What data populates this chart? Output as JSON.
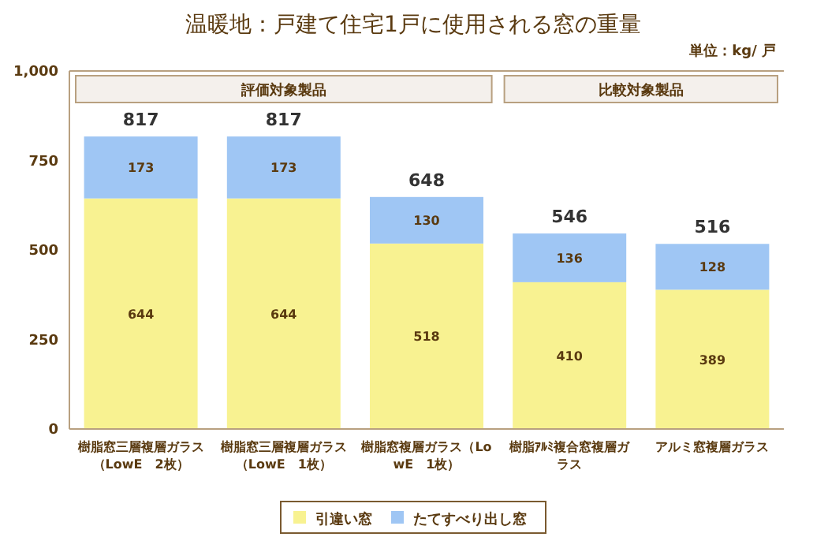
{
  "chart_data": {
    "type": "bar",
    "title": "温暖地：戸建て住宅1戸に使用される窓の重量",
    "stacked": true,
    "categories": [
      "樹脂窓三層複層ガラス（LowE　2枚）",
      "樹脂窓三層複層ガラス（LowE　1枚）",
      "樹脂窓複層ガラス（LowE　1枚）",
      "樹脂ｱﾙﾐ複合窓複層ガラス",
      "アルミ窓複層ガラス"
    ],
    "series": [
      {
        "name": "引違い窓",
        "color": "#f8f291",
        "values": [
          644,
          644,
          518,
          410,
          389
        ]
      },
      {
        "name": "たてすべり出し窓",
        "color": "#9fc6f4",
        "values": [
          173,
          173,
          130,
          136,
          128
        ]
      }
    ],
    "totals": [
      "817",
      "817",
      "648",
      "546",
      "516"
    ],
    "data_labels": true,
    "ylim": [
      0,
      1000
    ],
    "yticks": [
      0,
      250,
      500,
      750,
      {
        "value": 1000,
        "label": "1,000"
      }
    ],
    "bands": [
      {
        "axis": "x",
        "from": "樹脂窓三層複層ガラス（LowE　2枚）",
        "to": "樹脂窓複層ガラス（LowE　1枚）",
        "label": "評価対象製品",
        "color": "#f4f0ec"
      },
      {
        "axis": "x",
        "from": "樹脂ｱﾙﾐ複合窓複層ガラス",
        "to": "アルミ窓複層ガラス",
        "label": "比較対象製品",
        "color": "#f4f0ec"
      }
    ],
    "annotations": [
      "単位：kg/ 戸"
    ],
    "grid": false,
    "legend": "bottom"
  }
}
